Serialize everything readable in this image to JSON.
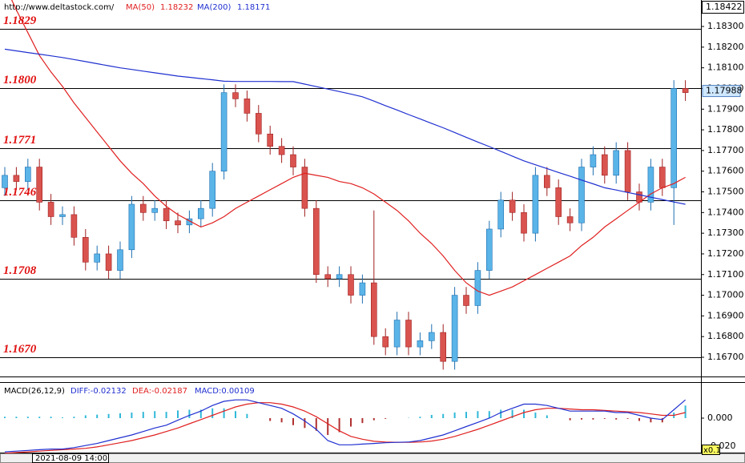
{
  "chart_data": {
    "type": "candlestick",
    "header": {
      "site": "http://www.deltastock.com/"
    },
    "top_price": 1.18422,
    "last_price": 1.17988,
    "ylim": [
      1.16607,
      1.18428
    ],
    "yticks": [
      {
        "value": 1.183,
        "label": "1.18300"
      },
      {
        "value": 1.182,
        "label": "1.18200"
      },
      {
        "value": 1.181,
        "label": "1.18100"
      },
      {
        "value": 1.18,
        "label": "1.18000"
      },
      {
        "value": 1.179,
        "label": "1.17900"
      },
      {
        "value": 1.178,
        "label": "1.17800"
      },
      {
        "value": 1.177,
        "label": "1.17700"
      },
      {
        "value": 1.176,
        "label": "1.17600"
      },
      {
        "value": 1.175,
        "label": "1.17500"
      },
      {
        "value": 1.174,
        "label": "1.17400"
      },
      {
        "value": 1.173,
        "label": "1.17300"
      },
      {
        "value": 1.172,
        "label": "1.17200"
      },
      {
        "value": 1.171,
        "label": "1.17100"
      },
      {
        "value": 1.17,
        "label": "1.17000"
      },
      {
        "value": 1.169,
        "label": "1.16900"
      },
      {
        "value": 1.168,
        "label": "1.16800"
      },
      {
        "value": 1.167,
        "label": "1.16700"
      }
    ],
    "levels": [
      1.1829,
      {
        "value": 1.18,
        "label": "1.1800"
      },
      1.1771,
      1.1746,
      1.1708,
      {
        "value": 1.167,
        "label": "1.1670"
      }
    ],
    "colors": {
      "up": "#5ab4e8",
      "up_edge": "#1f6fb0",
      "down": "#d9534f",
      "down_edge": "#a02020"
    },
    "open": [
      1.1752,
      1.1758,
      1.1755,
      1.1762,
      1.1745,
      1.1738,
      1.1739,
      1.1728,
      1.1716,
      1.172,
      1.1712,
      1.1722,
      1.1744,
      1.174,
      1.1742,
      1.1736,
      1.1734,
      1.1737,
      1.1742,
      1.176,
      1.1798,
      1.1795,
      1.1788,
      1.1778,
      1.1772,
      1.1768,
      1.1762,
      1.1742,
      1.171,
      1.1708,
      1.171,
      1.17,
      1.1706,
      1.168,
      1.1675,
      1.1688,
      1.1675,
      1.1678,
      1.1682,
      1.1668,
      1.17,
      1.1695,
      1.1712,
      1.1732,
      1.1746,
      1.174,
      1.173,
      1.1758,
      1.1752,
      1.1738,
      1.1735,
      1.1762,
      1.1768,
      1.1758,
      1.177,
      1.175,
      1.1745,
      1.1762,
      1.1752,
      1.18
    ],
    "high": [
      1.1762,
      1.1762,
      1.1766,
      1.1766,
      1.1749,
      1.1743,
      1.1743,
      1.1732,
      1.1724,
      1.1724,
      1.1726,
      1.1748,
      1.1748,
      1.1746,
      1.1746,
      1.174,
      1.1741,
      1.1746,
      1.1764,
      1.1802,
      1.1802,
      1.1799,
      1.1792,
      1.1782,
      1.1776,
      1.1772,
      1.1766,
      1.1746,
      1.1714,
      1.1714,
      1.1714,
      1.171,
      1.1741,
      1.1684,
      1.1692,
      1.1692,
      1.1682,
      1.1686,
      1.1686,
      1.1704,
      1.1704,
      1.1716,
      1.1736,
      1.175,
      1.175,
      1.1744,
      1.1762,
      1.1762,
      1.1756,
      1.1742,
      1.1766,
      1.1772,
      1.1772,
      1.1774,
      1.1774,
      1.1754,
      1.1766,
      1.1766,
      1.1804,
      1.1804
    ],
    "low": [
      1.1748,
      1.1751,
      1.1751,
      1.1741,
      1.1734,
      1.1734,
      1.1724,
      1.1712,
      1.1712,
      1.1708,
      1.1708,
      1.1718,
      1.1736,
      1.1736,
      1.1732,
      1.173,
      1.173,
      1.1733,
      1.1738,
      1.1756,
      1.1791,
      1.1784,
      1.1774,
      1.1768,
      1.1764,
      1.1758,
      1.1738,
      1.1706,
      1.1704,
      1.1704,
      1.1696,
      1.1696,
      1.1676,
      1.1671,
      1.1671,
      1.1671,
      1.1671,
      1.1674,
      1.1664,
      1.1664,
      1.1691,
      1.1691,
      1.1708,
      1.1728,
      1.1736,
      1.1726,
      1.1726,
      1.1748,
      1.1734,
      1.1731,
      1.1731,
      1.1758,
      1.1754,
      1.1754,
      1.1746,
      1.1741,
      1.1741,
      1.1748,
      1.1734,
      1.1794
    ],
    "close": [
      1.1758,
      1.1755,
      1.1762,
      1.1745,
      1.1738,
      1.1739,
      1.1728,
      1.1716,
      1.172,
      1.1712,
      1.1722,
      1.1744,
      1.174,
      1.1742,
      1.1736,
      1.1734,
      1.1737,
      1.1742,
      1.176,
      1.1798,
      1.1795,
      1.1788,
      1.1778,
      1.1772,
      1.1768,
      1.1762,
      1.1742,
      1.171,
      1.1708,
      1.171,
      1.17,
      1.1706,
      1.168,
      1.1675,
      1.1688,
      1.1675,
      1.1678,
      1.1682,
      1.1668,
      1.17,
      1.1695,
      1.1712,
      1.1732,
      1.1746,
      1.174,
      1.173,
      1.1758,
      1.1752,
      1.1738,
      1.1735,
      1.1762,
      1.1768,
      1.1758,
      1.177,
      1.175,
      1.1745,
      1.1762,
      1.1752,
      1.18,
      1.1798
    ],
    "series": [
      {
        "name": "MA(50)",
        "header_value": 1.18232,
        "color": "#e02020",
        "values": [
          1.185,
          1.1838,
          1.1827,
          1.1816,
          1.1808,
          1.1801,
          1.1793,
          1.1786,
          1.1779,
          1.1772,
          1.1765,
          1.1759,
          1.1754,
          1.1748,
          1.1743,
          1.1739,
          1.1736,
          1.1733,
          1.1735,
          1.1738,
          1.1742,
          1.1745,
          1.1748,
          1.1751,
          1.1754,
          1.1757,
          1.1759,
          1.1758,
          1.1757,
          1.1755,
          1.1754,
          1.1752,
          1.1749,
          1.1745,
          1.1741,
          1.1736,
          1.173,
          1.1725,
          1.1719,
          1.1712,
          1.1706,
          1.1702,
          1.17,
          1.1702,
          1.1704,
          1.1707,
          1.171,
          1.1713,
          1.1716,
          1.1719,
          1.1724,
          1.1728,
          1.1733,
          1.1737,
          1.1741,
          1.1745,
          1.1749,
          1.1752,
          1.1754,
          1.1757
        ]
      },
      {
        "name": "MA(200)",
        "header_value": 1.18171,
        "color": "#2030d0",
        "values": [
          1.1819,
          1.18182,
          1.18174,
          1.18166,
          1.18158,
          1.1815,
          1.1814,
          1.1813,
          1.1812,
          1.1811,
          1.181,
          1.18092,
          1.18084,
          1.18076,
          1.18068,
          1.1806,
          1.18054,
          1.18048,
          1.18042,
          1.18035,
          1.18034,
          1.18034,
          1.18034,
          1.18034,
          1.18033,
          1.18033,
          1.18021,
          1.18009,
          1.17997,
          1.17985,
          1.17973,
          1.1796,
          1.17939,
          1.17917,
          1.17896,
          1.17874,
          1.17853,
          1.17831,
          1.1781,
          1.17787,
          1.17764,
          1.17741,
          1.17719,
          1.17696,
          1.17673,
          1.1765,
          1.17631,
          1.17613,
          1.17594,
          1.17576,
          1.17557,
          1.17539,
          1.1752,
          1.17509,
          1.17497,
          1.17486,
          1.17474,
          1.17463,
          1.17451,
          1.1744
        ]
      }
    ],
    "macd": {
      "title": "MACD(26,12,9)",
      "diff_label": "DIFF:-0.02132",
      "dea_label": "DEA:-0.02187",
      "macd_label": "MACD:0.00109",
      "multiplier": "x0.1",
      "ylim": [
        -0.0251,
        0.0251
      ],
      "yticks": [
        {
          "value": 0,
          "label": "0.000"
        },
        {
          "value": -0.02,
          "label": "-0.020"
        }
      ],
      "hist_colors": {
        "up": "#30b8d8",
        "down": "#b03030"
      },
      "diff": {
        "color": "#2030d0",
        "values": [
          -0.024,
          -0.0235,
          -0.023,
          -0.0225,
          -0.022,
          -0.022,
          -0.021,
          -0.0195,
          -0.018,
          -0.016,
          -0.014,
          -0.012,
          -0.0095,
          -0.007,
          -0.005,
          -0.0015,
          0.002,
          0.005,
          0.009,
          0.012,
          0.013,
          0.013,
          0.011,
          0.009,
          0.007,
          0.003,
          -0.002,
          -0.008,
          -0.016,
          -0.019,
          -0.019,
          -0.0185,
          -0.018,
          -0.0175,
          -0.0172,
          -0.017,
          -0.016,
          -0.014,
          -0.012,
          -0.009,
          -0.006,
          -0.003,
          0.0,
          0.004,
          0.007,
          0.01,
          0.01,
          0.009,
          0.007,
          0.005,
          0.005,
          0.005,
          0.005,
          0.004,
          0.004,
          0.002,
          0.0,
          -0.001,
          0.006,
          0.013
        ]
      },
      "dea": {
        "color": "#e02020",
        "values": [
          -0.025,
          -0.0245,
          -0.024,
          -0.0235,
          -0.023,
          -0.0225,
          -0.022,
          -0.0215,
          -0.0205,
          -0.019,
          -0.0175,
          -0.016,
          -0.014,
          -0.012,
          -0.0095,
          -0.007,
          -0.004,
          -0.001,
          0.002,
          0.005,
          0.008,
          0.01,
          0.011,
          0.011,
          0.01,
          0.008,
          0.005,
          0.001,
          -0.004,
          -0.009,
          -0.013,
          -0.015,
          -0.0165,
          -0.017,
          -0.0172,
          -0.0172,
          -0.017,
          -0.0163,
          -0.015,
          -0.013,
          -0.0105,
          -0.008,
          -0.005,
          -0.002,
          0.001,
          0.004,
          0.006,
          0.007,
          0.007,
          0.0065,
          0.006,
          0.006,
          0.0055,
          0.005,
          0.0045,
          0.004,
          0.003,
          0.002,
          0.002,
          0.004
        ]
      },
      "histogram": [
        0.001,
        0.001,
        0.001,
        0.001,
        0.001,
        0.0005,
        0.001,
        0.002,
        0.0025,
        0.003,
        0.0035,
        0.004,
        0.0045,
        0.005,
        0.0045,
        0.0055,
        0.006,
        0.006,
        0.007,
        0.007,
        0.005,
        0.003,
        0.0,
        -0.002,
        -0.003,
        -0.005,
        -0.007,
        -0.009,
        -0.012,
        -0.01,
        -0.006,
        -0.0035,
        -0.0015,
        -0.0005,
        0.0,
        0.0002,
        0.001,
        0.0023,
        0.003,
        0.004,
        0.0045,
        0.005,
        0.005,
        0.006,
        0.006,
        0.006,
        0.004,
        0.002,
        0.0,
        -0.0015,
        -0.001,
        -0.001,
        -0.0005,
        -0.001,
        -0.0005,
        -0.002,
        -0.003,
        -0.003,
        0.004,
        0.009
      ]
    },
    "cursor_date": "2021-08-09 14:00"
  }
}
